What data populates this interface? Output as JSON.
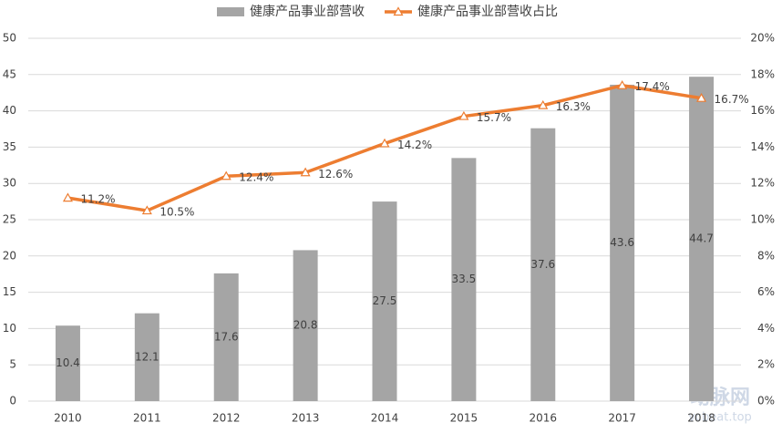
{
  "chart_data": {
    "type": "combo",
    "categories": [
      "2010",
      "2011",
      "2012",
      "2013",
      "2014",
      "2015",
      "2016",
      "2017",
      "2018"
    ],
    "series": [
      {
        "name": "健康产品事业部营收",
        "type": "bar",
        "color": "#a5a5a5",
        "values": [
          10.4,
          12.1,
          17.6,
          20.8,
          27.5,
          33.5,
          37.6,
          43.6,
          44.7
        ]
      },
      {
        "name": "健康产品事业部营收占比",
        "type": "line",
        "axis": "y2",
        "color": "#ed7d31",
        "values": [
          11.2,
          10.5,
          12.4,
          12.6,
          14.2,
          15.7,
          16.3,
          17.4,
          16.7
        ],
        "value_labels": [
          "11.2%",
          "10.5%",
          "12.4%",
          "12.6%",
          "14.2%",
          "15.7%",
          "16.3%",
          "17.4%",
          "16.7%"
        ]
      }
    ],
    "ylim": [
      0,
      50
    ],
    "yticks": [
      0,
      5,
      10,
      15,
      20,
      25,
      30,
      35,
      40,
      45,
      50
    ],
    "y2lim": [
      0,
      20
    ],
    "y2ticks": [
      {
        "value": 0,
        "label": "0%"
      },
      {
        "value": 2,
        "label": "2%"
      },
      {
        "value": 4,
        "label": "4%"
      },
      {
        "value": 6,
        "label": "6%"
      },
      {
        "value": 8,
        "label": "8%"
      },
      {
        "value": 10,
        "label": "10%"
      },
      {
        "value": 12,
        "label": "12%"
      },
      {
        "value": 14,
        "label": "14%"
      },
      {
        "value": 16,
        "label": "16%"
      },
      {
        "value": 18,
        "label": "18%"
      },
      {
        "value": 20,
        "label": "20%"
      }
    ],
    "grid": true,
    "legend": "top",
    "watermark": "动脉网",
    "watermark_url": "vcbeat.top"
  }
}
